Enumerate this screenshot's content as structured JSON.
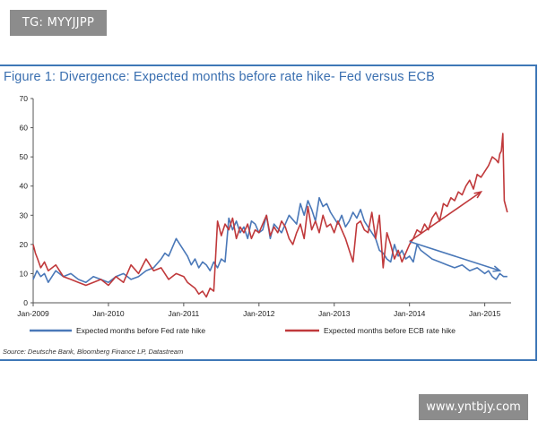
{
  "watermarks": {
    "top": "TG: MYYJJPP",
    "bottom": "www.yntbjy.com"
  },
  "source": "Source: Deutsche Bank, Bloomberg Finance LP, Datastream",
  "colors": {
    "fed": "#4a78b8",
    "ecb": "#c0393b",
    "title": "#3a6fb0",
    "frame": "#3f78b7"
  },
  "chart_data": {
    "type": "line",
    "title": "Figure 1: Divergence: Expected months before rate hike- Fed versus ECB",
    "xlabel": "",
    "ylabel": "",
    "ylim": [
      0,
      70
    ],
    "yticks": [
      "0",
      "10",
      "20",
      "30",
      "40",
      "50",
      "60",
      "70"
    ],
    "xtick_labels": [
      "Jan-2009",
      "Jan-2010",
      "Jan-2011",
      "Jan-2012",
      "Jan-2013",
      "Jan-2014",
      "Jan-2015"
    ],
    "xtick_positions": [
      2009.0,
      2010.0,
      2011.0,
      2012.0,
      2013.0,
      2014.0,
      2015.0
    ],
    "xlim": [
      2009.0,
      2015.35
    ],
    "legend_position": "bottom",
    "series": [
      {
        "name": "Expected months before Fed rate hike",
        "x": [
          2009.0,
          2009.05,
          2009.1,
          2009.15,
          2009.2,
          2009.3,
          2009.4,
          2009.5,
          2009.6,
          2009.7,
          2009.8,
          2009.9,
          2010.0,
          2010.1,
          2010.2,
          2010.3,
          2010.4,
          2010.5,
          2010.6,
          2010.7,
          2010.75,
          2010.8,
          2010.85,
          2010.9,
          2010.95,
          2011.0,
          2011.05,
          2011.1,
          2011.15,
          2011.2,
          2011.25,
          2011.3,
          2011.35,
          2011.4,
          2011.45,
          2011.5,
          2011.55,
          2011.6,
          2011.65,
          2011.7,
          2011.75,
          2011.8,
          2011.85,
          2011.9,
          2011.95,
          2012.0,
          2012.05,
          2012.1,
          2012.15,
          2012.2,
          2012.3,
          2012.4,
          2012.5,
          2012.55,
          2012.6,
          2012.65,
          2012.7,
          2012.75,
          2012.8,
          2012.85,
          2012.9,
          2012.95,
          2013.0,
          2013.05,
          2013.1,
          2013.15,
          2013.2,
          2013.25,
          2013.3,
          2013.35,
          2013.4,
          2013.45,
          2013.5,
          2013.55,
          2013.6,
          2013.65,
          2013.7,
          2013.75,
          2013.8,
          2013.85,
          2013.9,
          2013.95,
          2014.0,
          2014.05,
          2014.1,
          2014.15,
          2014.2,
          2014.3,
          2014.4,
          2014.5,
          2014.6,
          2014.7,
          2014.8,
          2014.9,
          2015.0,
          2015.05,
          2015.1,
          2015.15,
          2015.2,
          2015.25,
          2015.3
        ],
        "values": [
          8,
          11,
          9,
          10,
          7,
          11,
          9,
          10,
          8,
          7,
          9,
          8,
          7,
          9,
          10,
          8,
          9,
          11,
          12,
          15,
          17,
          16,
          19,
          22,
          20,
          18,
          16,
          13,
          15,
          12,
          14,
          13,
          11,
          14,
          12,
          15,
          14,
          29,
          25,
          28,
          24,
          26,
          22,
          28,
          27,
          24,
          25,
          30,
          22,
          27,
          24,
          30,
          27,
          34,
          30,
          35,
          32,
          28,
          36,
          33,
          34,
          31,
          29,
          27,
          30,
          26,
          28,
          31,
          29,
          32,
          28,
          26,
          24,
          22,
          18,
          17,
          15,
          14,
          20,
          16,
          18,
          15,
          16,
          14,
          20,
          18,
          17,
          15,
          14,
          13,
          12,
          13,
          11,
          12,
          10,
          11,
          9,
          8,
          10,
          9,
          9
        ]
      },
      {
        "name": "Expected months before ECB rate hike",
        "x": [
          2009.0,
          2009.03,
          2009.06,
          2009.1,
          2009.15,
          2009.2,
          2009.3,
          2009.4,
          2009.5,
          2009.6,
          2009.7,
          2009.8,
          2009.9,
          2010.0,
          2010.1,
          2010.2,
          2010.3,
          2010.4,
          2010.5,
          2010.6,
          2010.7,
          2010.8,
          2010.9,
          2011.0,
          2011.05,
          2011.1,
          2011.15,
          2011.2,
          2011.25,
          2011.3,
          2011.35,
          2011.4,
          2011.45,
          2011.5,
          2011.55,
          2011.6,
          2011.65,
          2011.7,
          2011.75,
          2011.8,
          2011.85,
          2011.9,
          2011.95,
          2012.0,
          2012.05,
          2012.1,
          2012.15,
          2012.2,
          2012.25,
          2012.3,
          2012.35,
          2012.4,
          2012.45,
          2012.5,
          2012.55,
          2012.6,
          2012.65,
          2012.7,
          2012.75,
          2012.8,
          2012.85,
          2012.9,
          2012.95,
          2013.0,
          2013.05,
          2013.1,
          2013.15,
          2013.2,
          2013.25,
          2013.3,
          2013.35,
          2013.4,
          2013.45,
          2013.5,
          2013.55,
          2013.6,
          2013.65,
          2013.7,
          2013.75,
          2013.8,
          2013.85,
          2013.9,
          2013.95,
          2014.0,
          2014.05,
          2014.1,
          2014.15,
          2014.2,
          2014.25,
          2014.3,
          2014.35,
          2014.4,
          2014.45,
          2014.5,
          2014.55,
          2014.6,
          2014.65,
          2014.7,
          2014.75,
          2014.8,
          2014.85,
          2014.9,
          2014.95,
          2015.0,
          2015.05,
          2015.1,
          2015.15,
          2015.18,
          2015.2,
          2015.22,
          2015.24,
          2015.26,
          2015.28,
          2015.3
        ],
        "values": [
          20,
          17,
          15,
          12,
          14,
          11,
          13,
          9,
          8,
          7,
          6,
          7,
          8,
          6,
          9,
          7,
          13,
          10,
          15,
          11,
          12,
          8,
          10,
          9,
          7,
          6,
          5,
          3,
          4,
          2,
          5,
          4,
          28,
          23,
          27,
          25,
          29,
          22,
          26,
          24,
          27,
          22,
          25,
          24,
          27,
          30,
          23,
          26,
          24,
          28,
          26,
          22,
          20,
          24,
          27,
          22,
          33,
          25,
          28,
          24,
          30,
          26,
          27,
          24,
          28,
          25,
          22,
          18,
          14,
          27,
          28,
          25,
          24,
          31,
          22,
          30,
          12,
          24,
          20,
          15,
          18,
          14,
          17,
          20,
          22,
          25,
          24,
          27,
          25,
          29,
          31,
          28,
          34,
          33,
          36,
          35,
          38,
          37,
          40,
          42,
          39,
          44,
          43,
          45,
          47,
          50,
          49,
          48,
          51,
          52,
          58,
          35,
          33,
          31
        ]
      }
    ],
    "annotations": [
      {
        "type": "arrow",
        "color": "red",
        "from": [
          2014.0,
          21
        ],
        "to": [
          2014.95,
          38
        ]
      },
      {
        "type": "arrow",
        "color": "blue",
        "from": [
          2014.0,
          21
        ],
        "to": [
          2015.2,
          11
        ]
      }
    ]
  }
}
